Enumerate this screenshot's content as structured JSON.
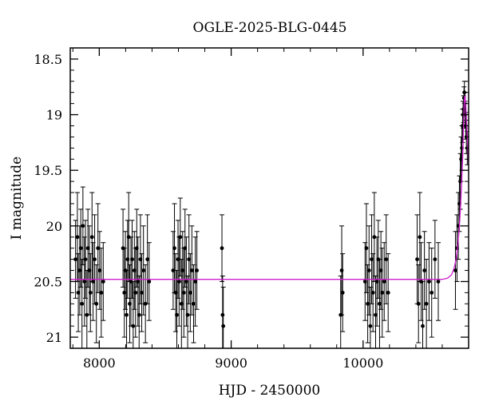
{
  "chart_data": {
    "type": "scatter",
    "title": "OGLE-2025-BLG-0445",
    "xlabel": "HJD - 2450000",
    "ylabel": "I magnitude",
    "xlim": [
      7780,
      10800
    ],
    "ylim": [
      18.4,
      21.1
    ],
    "y_inverted": true,
    "x_ticks": [
      8000,
      9000,
      10000
    ],
    "x_tick_labels": [
      "8000",
      "9000",
      "10000"
    ],
    "y_ticks": [
      18.5,
      19,
      19.5,
      20,
      20.5,
      21
    ],
    "y_tick_labels": [
      "18.5",
      "19",
      "19.5",
      "20",
      "20.5",
      "21"
    ],
    "grid": false,
    "colors": {
      "points": "#000000",
      "model": "#d020d0"
    },
    "series": [
      {
        "style": "points-with-error-bars",
        "x": [
          7820,
          7834,
          7841,
          7852,
          7860,
          7869,
          7876,
          7888,
          7895,
          7906,
          7914,
          7925,
          7933,
          7945,
          7953,
          7965,
          7978,
          7990,
          8003,
          8015,
          8030,
          8180,
          8190,
          8198,
          8207,
          8215,
          8223,
          8231,
          8240,
          8249,
          8257,
          8266,
          8275,
          8284,
          8293,
          8302,
          8312,
          8322,
          8335,
          8350,
          8365,
          8378,
          8560,
          8570,
          8579,
          8588,
          8597,
          8605,
          8614,
          8623,
          8632,
          8641,
          8650,
          8660,
          8670,
          8680,
          8690,
          8702,
          8715,
          8728,
          8740,
          8930,
          8935,
          8940,
          9830,
          9838,
          9845,
          10015,
          10025,
          10035,
          10045,
          10055,
          10065,
          10075,
          10085,
          10095,
          10105,
          10115,
          10125,
          10135,
          10145,
          10160,
          10175,
          10190,
          10410,
          10420,
          10430,
          10440,
          10452,
          10465,
          10480,
          10500,
          10520,
          10545,
          10570,
          10700,
          10712,
          10722,
          10730,
          10737,
          10743,
          10749,
          10754,
          10758,
          10762,
          10765,
          10768,
          10771,
          10774,
          10778,
          10783,
          10790
        ],
        "y": [
          20.3,
          20.1,
          20.6,
          20.4,
          20.2,
          20.7,
          20.0,
          20.5,
          20.3,
          20.8,
          20.2,
          20.4,
          20.6,
          20.1,
          20.5,
          20.3,
          20.7,
          20.2,
          20.4,
          20.6,
          20.5,
          20.2,
          20.6,
          20.4,
          20.8,
          20.3,
          20.1,
          20.7,
          20.5,
          20.3,
          20.9,
          20.4,
          20.6,
          20.2,
          20.5,
          20.8,
          20.3,
          20.6,
          20.4,
          20.7,
          20.3,
          20.5,
          20.4,
          20.2,
          20.6,
          20.8,
          20.3,
          20.5,
          20.1,
          20.7,
          20.4,
          20.6,
          20.2,
          20.5,
          20.8,
          20.3,
          20.6,
          20.4,
          20.7,
          20.5,
          20.4,
          20.2,
          20.8,
          20.9,
          20.8,
          20.4,
          20.6,
          20.5,
          20.2,
          20.7,
          20.4,
          20.9,
          20.3,
          20.6,
          20.1,
          20.8,
          20.5,
          20.3,
          20.7,
          20.4,
          20.6,
          20.5,
          20.3,
          20.6,
          20.3,
          20.7,
          20.1,
          20.5,
          20.9,
          20.4,
          20.7,
          20.5,
          20.6,
          20.3,
          20.5,
          20.4,
          20.2,
          20.0,
          19.8,
          19.6,
          19.4,
          19.3,
          19.1,
          19.0,
          18.95,
          18.85,
          18.8,
          18.9,
          19.0,
          19.1,
          19.2,
          19.3
        ],
        "err": [
          0.35,
          0.4,
          0.35,
          0.4,
          0.35,
          0.4,
          0.35,
          0.4,
          0.35,
          0.4,
          0.35,
          0.4,
          0.35,
          0.4,
          0.35,
          0.4,
          0.35,
          0.4,
          0.35,
          0.4,
          0.35,
          0.35,
          0.4,
          0.35,
          0.4,
          0.35,
          0.4,
          0.35,
          0.4,
          0.35,
          0.4,
          0.35,
          0.4,
          0.35,
          0.4,
          0.35,
          0.4,
          0.35,
          0.4,
          0.35,
          0.4,
          0.35,
          0.35,
          0.4,
          0.35,
          0.4,
          0.35,
          0.4,
          0.35,
          0.4,
          0.35,
          0.4,
          0.35,
          0.4,
          0.35,
          0.4,
          0.35,
          0.4,
          0.35,
          0.4,
          0.35,
          0.3,
          0.35,
          0.35,
          0.35,
          0.4,
          0.35,
          0.35,
          0.4,
          0.35,
          0.4,
          0.35,
          0.4,
          0.35,
          0.4,
          0.35,
          0.4,
          0.35,
          0.4,
          0.35,
          0.4,
          0.35,
          0.4,
          0.35,
          0.4,
          0.35,
          0.4,
          0.35,
          0.4,
          0.35,
          0.4,
          0.35,
          0.4,
          0.35,
          0.35,
          0.35,
          0.3,
          0.3,
          0.25,
          0.25,
          0.2,
          0.2,
          0.15,
          0.12,
          0.12,
          0.1,
          0.1,
          0.1,
          0.12,
          0.12,
          0.15,
          0.15
        ]
      },
      {
        "style": "model-line",
        "x": [
          7780,
          10600,
          10640,
          10670,
          10690,
          10705,
          10715,
          10725,
          10733,
          10740,
          10746,
          10751,
          10755,
          10758,
          10761,
          10764,
          10767,
          10770,
          10773,
          10776,
          10780,
          10785,
          10792,
          10800
        ],
        "y": [
          20.48,
          20.48,
          20.47,
          20.44,
          20.38,
          20.3,
          20.2,
          20.08,
          19.95,
          19.8,
          19.65,
          19.5,
          19.38,
          19.25,
          19.12,
          19.0,
          18.9,
          18.84,
          18.83,
          18.87,
          18.95,
          19.08,
          19.25,
          19.45
        ]
      }
    ]
  }
}
